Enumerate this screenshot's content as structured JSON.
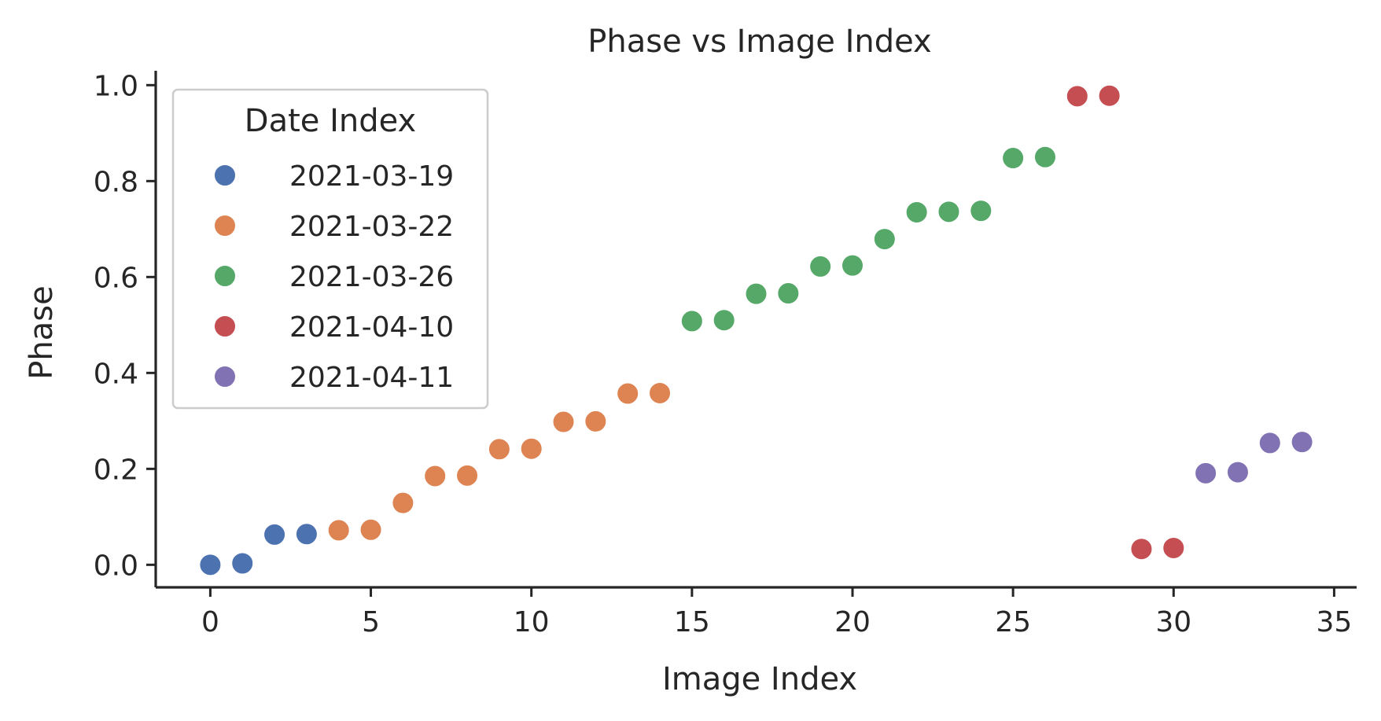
{
  "chart_data": {
    "type": "scatter",
    "title": "Phase vs Image Index",
    "xlabel": "Image Index",
    "ylabel": "Phase",
    "xlim": [
      -1.7,
      35.7
    ],
    "ylim": [
      -0.047,
      1.03
    ],
    "xticks": [
      0,
      5,
      10,
      15,
      20,
      25,
      30,
      35
    ],
    "xtick_labels": [
      "0",
      "5",
      "10",
      "15",
      "20",
      "25",
      "30",
      "35"
    ],
    "yticks": [
      0.0,
      0.2,
      0.4,
      0.6,
      0.8,
      1.0
    ],
    "ytick_labels": [
      "0.0",
      "0.2",
      "0.4",
      "0.6",
      "0.8",
      "1.0"
    ],
    "grid": false,
    "legend": {
      "title": "Date Index",
      "position": "top-left"
    },
    "series": [
      {
        "name": "2021-03-19",
        "color": "#4c72b0",
        "points": [
          [
            0,
            0.0
          ],
          [
            1,
            0.003
          ],
          [
            2,
            0.063
          ],
          [
            3,
            0.064
          ]
        ]
      },
      {
        "name": "2021-03-22",
        "color": "#dd8452",
        "points": [
          [
            4,
            0.072
          ],
          [
            5,
            0.073
          ],
          [
            6,
            0.129
          ],
          [
            7,
            0.185
          ],
          [
            8,
            0.186
          ],
          [
            9,
            0.241
          ],
          [
            10,
            0.242
          ],
          [
            11,
            0.298
          ],
          [
            12,
            0.299
          ],
          [
            13,
            0.357
          ],
          [
            14,
            0.358
          ]
        ]
      },
      {
        "name": "2021-03-26",
        "color": "#55a868",
        "points": [
          [
            15,
            0.508
          ],
          [
            16,
            0.51
          ],
          [
            17,
            0.565
          ],
          [
            18,
            0.566
          ],
          [
            19,
            0.622
          ],
          [
            20,
            0.624
          ],
          [
            21,
            0.679
          ],
          [
            22,
            0.735
          ],
          [
            23,
            0.736
          ],
          [
            24,
            0.738
          ],
          [
            25,
            0.848
          ],
          [
            26,
            0.85
          ]
        ]
      },
      {
        "name": "2021-04-10",
        "color": "#c44e52",
        "points": [
          [
            27,
            0.977
          ],
          [
            28,
            0.978
          ],
          [
            29,
            0.033
          ],
          [
            30,
            0.035
          ]
        ]
      },
      {
        "name": "2021-04-11",
        "color": "#8172b3",
        "points": [
          [
            31,
            0.191
          ],
          [
            32,
            0.193
          ],
          [
            33,
            0.254
          ],
          [
            34,
            0.256
          ]
        ]
      }
    ]
  }
}
